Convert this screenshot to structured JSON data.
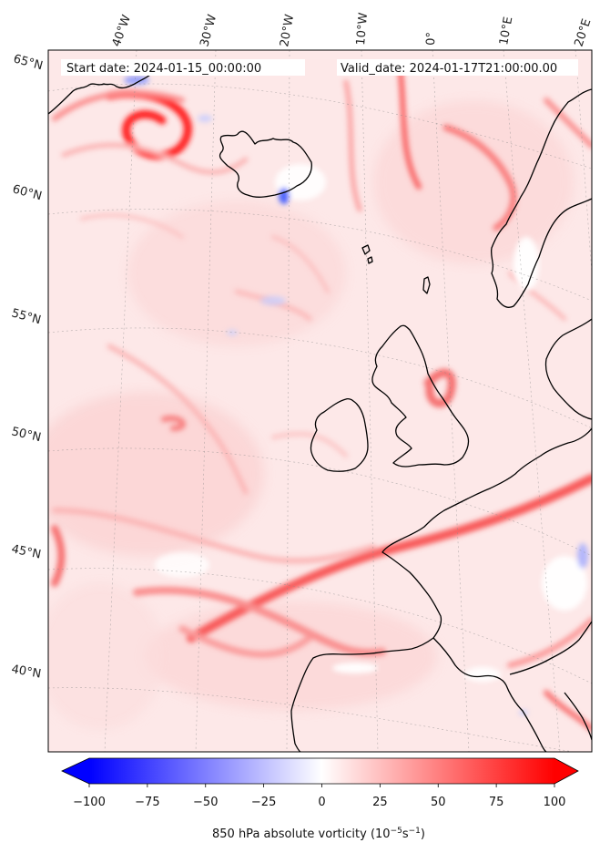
{
  "map": {
    "start_date": "Start date: 2024-01-15_00:00:00",
    "valid_date": "Valid_date: 2024-01-17T21:00:00.00",
    "longitude_labels": [
      "40°W",
      "30°W",
      "20°W",
      "10°W",
      "0°",
      "10°E",
      "20°E"
    ],
    "latitude_labels": [
      "65°N",
      "60°N",
      "55°N",
      "50°N",
      "45°N",
      "40°N"
    ],
    "gridlines": "dotted",
    "coastline_color": "#000000"
  },
  "colorbar": {
    "label": "850 hPa absolute vorticity (10",
    "label_exp1": "−5",
    "label_mid": "s",
    "label_exp2": "−1",
    "label_end": ")",
    "tick_labels": [
      "−100",
      "−75",
      "−50",
      "−25",
      "0",
      "25",
      "50",
      "75",
      "100"
    ],
    "min": -100,
    "max": 100,
    "cmap": "bwr",
    "extend": "both",
    "low_color": "#0000ff",
    "mid_color": "#ffffff",
    "high_color": "#ff0000"
  }
}
